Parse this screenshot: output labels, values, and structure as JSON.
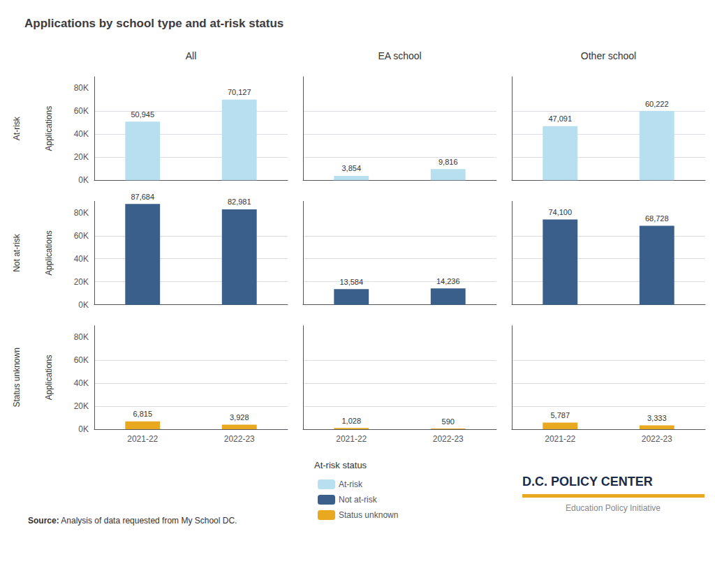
{
  "chart_data": {
    "type": "bar",
    "title": "Applications by school type and at-risk status",
    "columns": [
      "All",
      "EA school",
      "Other school"
    ],
    "rows": [
      "At-risk",
      "Not at-risk",
      "Status unknown"
    ],
    "row_sublabel": "Applications",
    "categories": [
      "2021-22",
      "2022-23"
    ],
    "series": [
      {
        "name": "At-risk",
        "column": "All",
        "color": "#b8dff0",
        "values": [
          50945,
          70127
        ],
        "value_labels": [
          "50,945",
          "70,127"
        ]
      },
      {
        "name": "At-risk",
        "column": "EA school",
        "color": "#b8dff0",
        "values": [
          3854,
          9816
        ],
        "value_labels": [
          "3,854",
          "9,816"
        ]
      },
      {
        "name": "At-risk",
        "column": "Other school",
        "color": "#b8dff0",
        "values": [
          47091,
          60222
        ],
        "value_labels": [
          "47,091",
          "60,222"
        ]
      },
      {
        "name": "Not at-risk",
        "column": "All",
        "color": "#3a5f8a",
        "values": [
          87684,
          82981
        ],
        "value_labels": [
          "87,684",
          "82,981"
        ]
      },
      {
        "name": "Not at-risk",
        "column": "EA school",
        "color": "#3a5f8a",
        "values": [
          13584,
          14236
        ],
        "value_labels": [
          "13,584",
          "14,236"
        ]
      },
      {
        "name": "Not at-risk",
        "column": "Other school",
        "color": "#3a5f8a",
        "values": [
          74100,
          68728
        ],
        "value_labels": [
          "74,100",
          "68,728"
        ]
      },
      {
        "name": "Status unknown",
        "column": "All",
        "color": "#e8a820",
        "values": [
          6815,
          3928
        ],
        "value_labels": [
          "6,815",
          "3,928"
        ]
      },
      {
        "name": "Status unknown",
        "column": "EA school",
        "color": "#e8a820",
        "values": [
          1028,
          590
        ],
        "value_labels": [
          "1,028",
          "590"
        ]
      },
      {
        "name": "Status unknown",
        "column": "Other school",
        "color": "#e8a820",
        "values": [
          5787,
          3333
        ],
        "value_labels": [
          "5,787",
          "3,333"
        ]
      }
    ],
    "ylim": [
      0,
      90000
    ],
    "yticks": [
      {
        "value": 0,
        "label": "0K"
      },
      {
        "value": 20000,
        "label": "20K"
      },
      {
        "value": 40000,
        "label": "40K"
      },
      {
        "value": 60000,
        "label": "60K"
      },
      {
        "value": 80000,
        "label": "80K"
      }
    ],
    "grid": true,
    "data_labels": true,
    "legend": "bottom",
    "legend_title": "At-risk status",
    "source_label": "Source:",
    "source_text": "Analysis of data requested from My School DC.",
    "logo": {
      "title": "D.C. POLICY CENTER",
      "subtitle": "Education Policy Initiative",
      "color": "#1a2a4a",
      "subtitle_color": "#888888",
      "line_color": "#e8a820"
    }
  }
}
